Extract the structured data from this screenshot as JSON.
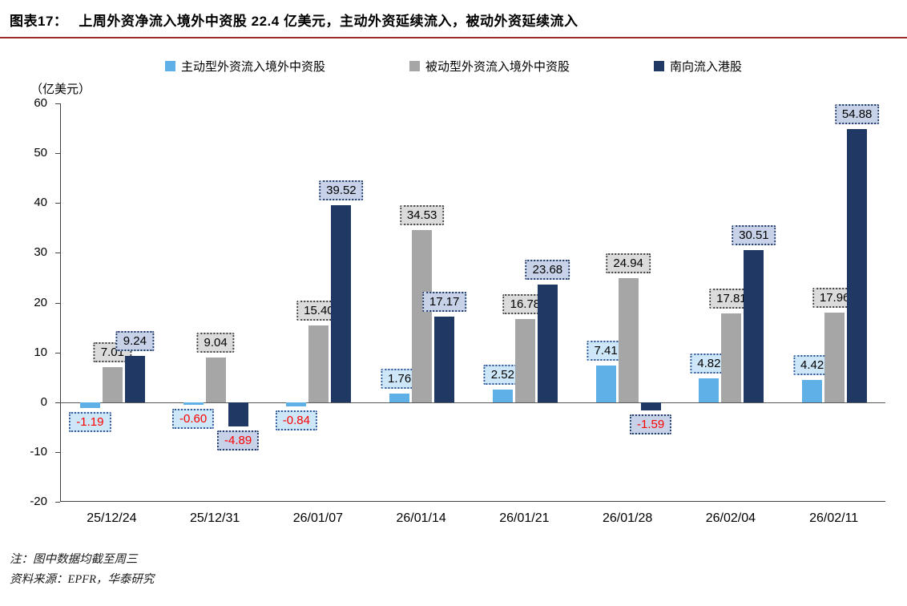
{
  "title": {
    "prefix": "图表17：",
    "text": "上周外资净流入境外中资股 22.4 亿美元，主动外资延续流入，被动外资延续流入"
  },
  "divider_color": "#9a2b25",
  "unit_label": "（亿美元）",
  "notes": [
    "注：图中数据均截至周三",
    "资料来源：EPFR，华泰研究"
  ],
  "chart_data": {
    "type": "bar",
    "title": "上周外资净流入境外中资股 22.4 亿美元，主动外资延续流入，被动外资延续流入",
    "xlabel": "",
    "ylabel": "（亿美元）",
    "ylim": [
      -20,
      60
    ],
    "ytick_step": 10,
    "grid": false,
    "legend_position": "top",
    "negative_label_color": "#ff0000",
    "categories": [
      "25/12/24",
      "25/12/31",
      "26/01/07",
      "26/01/14",
      "26/01/21",
      "26/01/28",
      "26/02/04",
      "26/02/11"
    ],
    "series": [
      {
        "name": "主动型外资流入境外中资股",
        "color": "#5fb0e6",
        "label_bg": "#cde6f8",
        "label_border": "#2f5597",
        "values": [
          -1.19,
          -0.6,
          -0.84,
          1.76,
          2.52,
          7.41,
          4.82,
          4.42
        ]
      },
      {
        "name": "被动型外资流入境外中资股",
        "color": "#a6a6a6",
        "label_bg": "#dbdbdb",
        "label_border": "#404040",
        "values": [
          7.01,
          9.04,
          15.4,
          34.53,
          16.78,
          24.94,
          17.81,
          17.96
        ]
      },
      {
        "name": "南向流入港股",
        "color": "#1f3864",
        "label_bg": "#c7d2e8",
        "label_border": "#1f3864",
        "values": [
          9.24,
          -4.89,
          39.52,
          17.17,
          23.68,
          -1.59,
          30.51,
          54.88
        ]
      }
    ]
  }
}
